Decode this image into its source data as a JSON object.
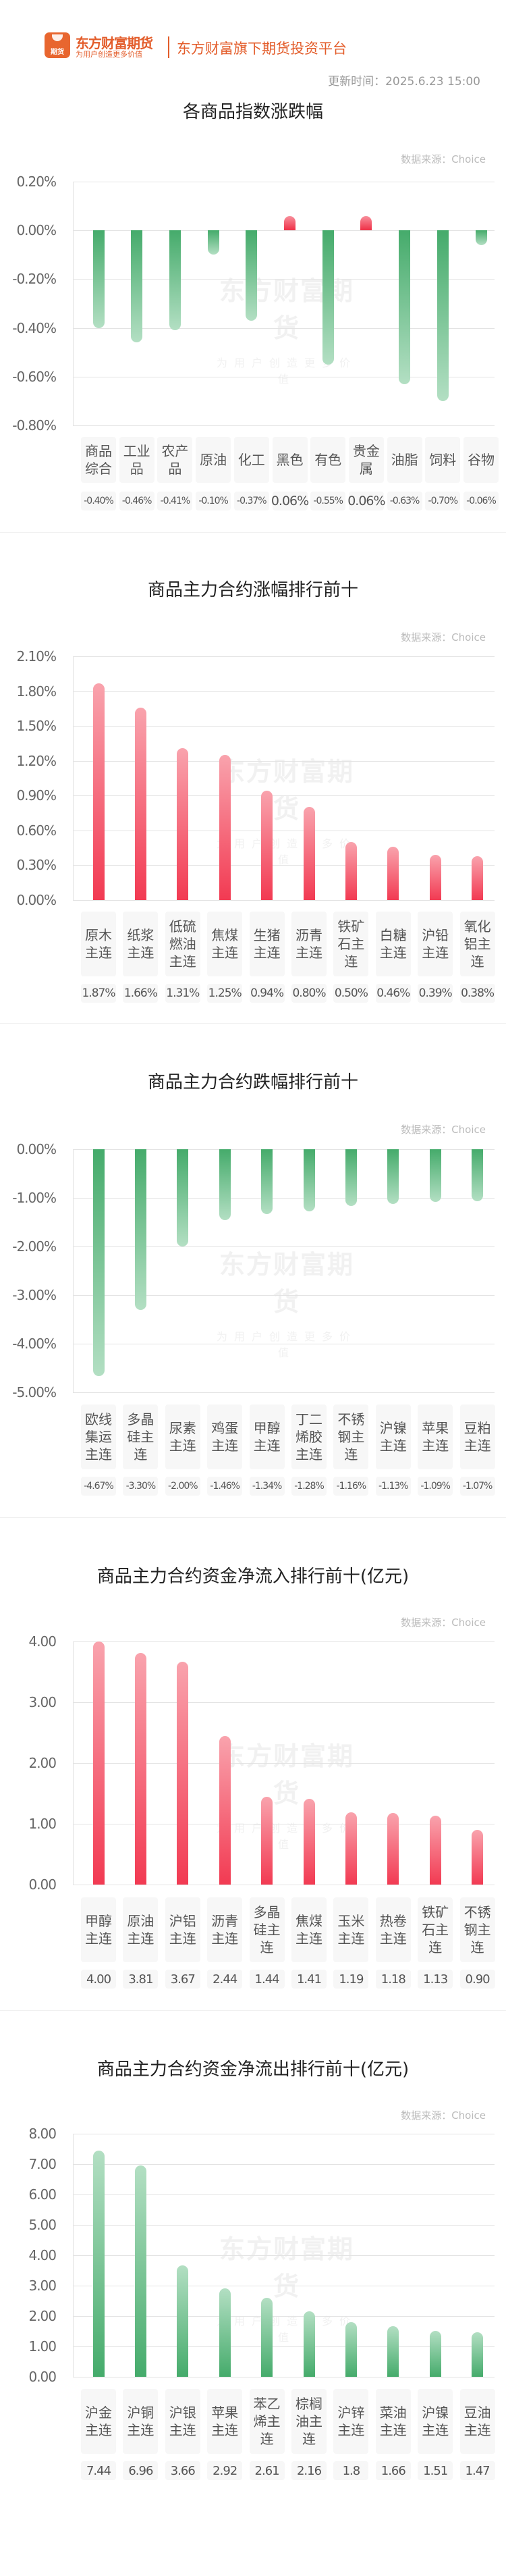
{
  "header": {
    "brand_name": "东方财富期货",
    "brand_slogan": "为用户创造更多价值",
    "logo_glyph": "期货",
    "platform": "东方财富旗下期货投资平台",
    "update_time": "更新时间：2025.6.23 15:00"
  },
  "watermark": {
    "main": "东方财富期货",
    "sub": "为用户创造更多价值"
  },
  "colors": {
    "up": "#f23a52",
    "down": "#45ab6b",
    "brand": "#e35d2b"
  },
  "chart_data": [
    {
      "type": "bar",
      "title": "各商品指数涨跌幅",
      "source": "数据来源：Choice",
      "xlabel": "",
      "ylabel": "",
      "ylim": [
        -0.8,
        0.2
      ],
      "yticks": [
        "0.20%",
        "0.00%",
        "-0.20%",
        "-0.40%",
        "-0.60%",
        "-0.80%"
      ],
      "categories": [
        "商品综合",
        "工业品",
        "农产品",
        "原油",
        "化工",
        "黑色",
        "有色",
        "贵金属",
        "油脂",
        "饲料",
        "谷物"
      ],
      "values": [
        -0.4,
        -0.46,
        -0.41,
        -0.1,
        -0.37,
        0.06,
        -0.55,
        0.06,
        -0.63,
        -0.7,
        -0.06
      ],
      "value_labels": [
        "-0.40%",
        "-0.46%",
        "-0.41%",
        "-0.10%",
        "-0.37%",
        "0.06%",
        "-0.55%",
        "0.06%",
        "-0.63%",
        "-0.70%",
        "-0.06%"
      ],
      "grid": true,
      "unit": "%"
    },
    {
      "type": "bar",
      "title": "商品主力合约涨幅排行前十",
      "source": "数据来源：Choice",
      "xlabel": "",
      "ylabel": "",
      "ylim": [
        0,
        2.1
      ],
      "yticks": [
        "2.10%",
        "1.80%",
        "1.50%",
        "1.20%",
        "0.90%",
        "0.60%",
        "0.30%",
        "0.00%"
      ],
      "categories": [
        "原木主连",
        "纸浆主连",
        "低硫燃油主连",
        "焦煤主连",
        "生猪主连",
        "沥青主连",
        "铁矿石主连",
        "白糖主连",
        "沪铅主连",
        "氧化铝主连"
      ],
      "values": [
        1.87,
        1.66,
        1.31,
        1.25,
        0.94,
        0.8,
        0.5,
        0.46,
        0.39,
        0.38
      ],
      "value_labels": [
        "1.87%",
        "1.66%",
        "1.31%",
        "1.25%",
        "0.94%",
        "0.80%",
        "0.50%",
        "0.46%",
        "0.39%",
        "0.38%"
      ],
      "grid": true,
      "unit": "%"
    },
    {
      "type": "bar",
      "title": "商品主力合约跌幅排行前十",
      "source": "数据来源：Choice",
      "xlabel": "",
      "ylabel": "",
      "ylim": [
        -5.0,
        0
      ],
      "yticks": [
        "0.00%",
        "-1.00%",
        "-2.00%",
        "-3.00%",
        "-4.00%",
        "-5.00%"
      ],
      "categories": [
        "欧线集运主连",
        "多晶硅主连",
        "尿素主连",
        "鸡蛋主连",
        "甲醇主连",
        "丁二烯胶主连",
        "不锈钢主连",
        "沪镍主连",
        "苹果主连",
        "豆粕主连"
      ],
      "values": [
        -4.67,
        -3.3,
        -2.0,
        -1.46,
        -1.34,
        -1.28,
        -1.16,
        -1.13,
        -1.09,
        -1.07
      ],
      "value_labels": [
        "-4.67%",
        "-3.30%",
        "-2.00%",
        "-1.46%",
        "-1.34%",
        "-1.28%",
        "-1.16%",
        "-1.13%",
        "-1.09%",
        "-1.07%"
      ],
      "grid": true,
      "unit": "%"
    },
    {
      "type": "bar",
      "title": "商品主力合约资金净流入排行前十(亿元)",
      "source": "数据来源：Choice",
      "xlabel": "",
      "ylabel": "亿元",
      "ylim": [
        0,
        4.0
      ],
      "yticks": [
        "4.00",
        "3.00",
        "2.00",
        "1.00",
        "0.00"
      ],
      "categories": [
        "甲醇主连",
        "原油主连",
        "沪铝主连",
        "沥青主连",
        "多晶硅主连",
        "焦煤主连",
        "玉米主连",
        "热卷主连",
        "铁矿石主连",
        "不锈钢主连"
      ],
      "values": [
        4.0,
        3.81,
        3.67,
        2.44,
        1.44,
        1.41,
        1.19,
        1.18,
        1.13,
        0.9
      ],
      "value_labels": [
        "4.00",
        "3.81",
        "3.67",
        "2.44",
        "1.44",
        "1.41",
        "1.19",
        "1.18",
        "1.13",
        "0.90"
      ],
      "grid": true,
      "unit": "亿元"
    },
    {
      "type": "bar",
      "title": "商品主力合约资金净流出排行前十(亿元)",
      "source": "数据来源：Choice",
      "xlabel": "",
      "ylabel": "亿元",
      "ylim": [
        0,
        8.0
      ],
      "yticks": [
        "8.00",
        "7.00",
        "6.00",
        "5.00",
        "4.00",
        "3.00",
        "2.00",
        "1.00",
        "0.00"
      ],
      "categories": [
        "沪金主连",
        "沪铜主连",
        "沪银主连",
        "苹果主连",
        "苯乙烯主连",
        "棕榈油主连",
        "沪锌主连",
        "菜油主连",
        "沪镍主连",
        "豆油主连"
      ],
      "values": [
        7.44,
        6.96,
        3.66,
        2.92,
        2.61,
        2.16,
        1.8,
        1.66,
        1.51,
        1.47
      ],
      "value_labels": [
        "7.44",
        "6.96",
        "3.66",
        "2.92",
        "2.61",
        "2.16",
        "1.8",
        "1.66",
        "1.51",
        "1.47"
      ],
      "grid": true,
      "unit": "亿元"
    }
  ]
}
